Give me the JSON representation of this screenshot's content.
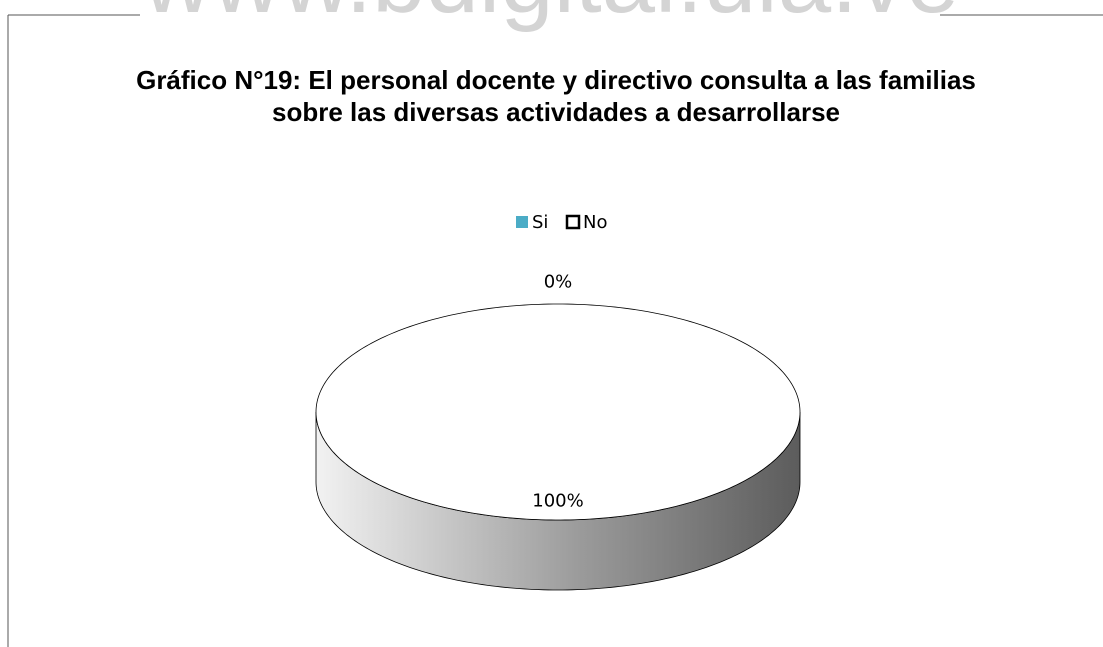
{
  "watermark": "www.bdigital.ula.ve",
  "chart_data": {
    "type": "pie",
    "title": "Gráfico N°19: El personal docente y directivo consulta a las familias sobre las diversas actividades a desarrollarse",
    "categories": [
      "Si",
      "No"
    ],
    "values": [
      0,
      100
    ],
    "value_labels": [
      "0%",
      "100%"
    ],
    "colors": [
      "#4bacc6",
      "#ffffff"
    ],
    "legend": "top"
  }
}
